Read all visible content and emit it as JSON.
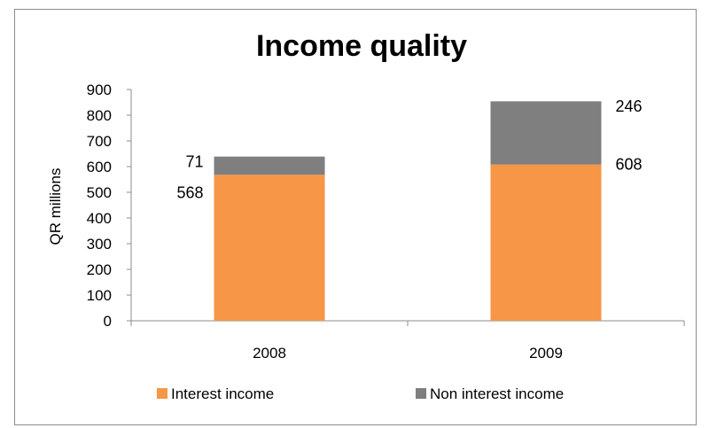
{
  "chart_data": {
    "type": "bar",
    "stacked": true,
    "title": "Income quality",
    "ylabel": "QR millions",
    "xlabel": "",
    "categories": [
      "2008",
      "2009"
    ],
    "series": [
      {
        "name": "Interest income",
        "values": [
          568,
          608
        ],
        "color": "#f79646"
      },
      {
        "name": "Non interest income",
        "values": [
          71,
          246
        ],
        "color": "#7f7f7f"
      }
    ],
    "ylim": [
      0,
      900
    ],
    "yticks": [
      0,
      100,
      200,
      300,
      400,
      500,
      600,
      700,
      800,
      900
    ],
    "grid": false,
    "legend_position": "bottom"
  }
}
